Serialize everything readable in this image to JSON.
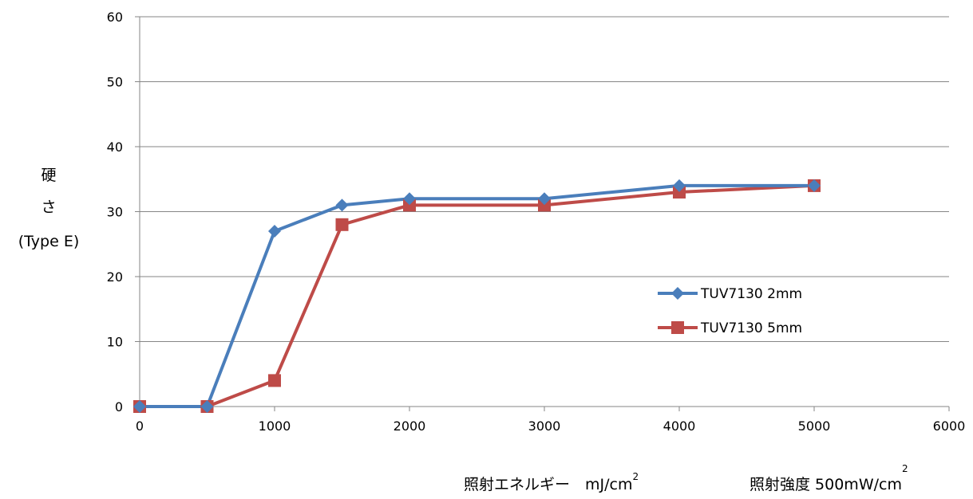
{
  "chart_data": {
    "type": "line",
    "xlabel_parts": [
      "照射エネルギー　mJ/cm",
      "2"
    ],
    "intensity_parts": [
      "照射強度 500mW/cm",
      "2"
    ],
    "ylabel_lines": [
      "硬",
      "さ",
      "(Type E)"
    ],
    "xlim": [
      0,
      6000
    ],
    "ylim": [
      0,
      60
    ],
    "xticks": [
      0,
      1000,
      2000,
      3000,
      4000,
      5000,
      6000
    ],
    "yticks": [
      0,
      10,
      20,
      30,
      40,
      50,
      60
    ],
    "grid": true,
    "legend_position": "right-middle",
    "series": [
      {
        "name": "TUV7130 2mm",
        "color": "#4a7ebb",
        "marker": "diamond",
        "x": [
          0,
          500,
          1000,
          1500,
          2000,
          3000,
          4000,
          5000
        ],
        "y": [
          0,
          0,
          27,
          31,
          32,
          32,
          34,
          34
        ]
      },
      {
        "name": "TUV7130 5mm",
        "color": "#be4b48",
        "marker": "square",
        "x": [
          0,
          500,
          1000,
          1500,
          2000,
          3000,
          4000,
          5000
        ],
        "y": [
          0,
          0,
          4,
          28,
          31,
          31,
          33,
          34
        ]
      }
    ]
  }
}
